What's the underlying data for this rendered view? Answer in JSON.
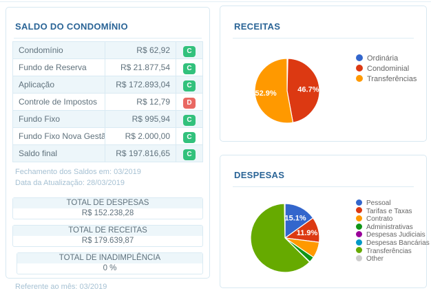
{
  "colors": {
    "title_accent": "#2a6496",
    "panel_border": "#d7e8f1",
    "row_alt_bg": "#edf6fa",
    "credit_badge": "#32c17c",
    "debit_badge": "#e96862",
    "muted_note": "#a6c1d3"
  },
  "saldo_panel": {
    "title": "SALDO DO CONDOMÍNIO",
    "rows": [
      {
        "label": "Condomínio",
        "value": "R$ 62,92",
        "badge": "C",
        "badge_type": "credit"
      },
      {
        "label": "Fundo de Reserva",
        "value": "R$ 21.877,54",
        "badge": "C",
        "badge_type": "credit"
      },
      {
        "label": "Aplicação",
        "value": "R$ 172.893,04",
        "badge": "C",
        "badge_type": "credit"
      },
      {
        "label": "Controle de Impostos",
        "value": "R$ 12,79",
        "badge": "D",
        "badge_type": "debit"
      },
      {
        "label": "Fundo Fixo",
        "value": "R$ 995,94",
        "badge": "C",
        "badge_type": "credit"
      },
      {
        "label": "Fundo Fixo Nova Gestão",
        "value": "R$ 2.000,00",
        "badge": "C",
        "badge_type": "credit"
      },
      {
        "label": "Saldo final",
        "value": "R$ 197.816,65",
        "badge": "C",
        "badge_type": "credit"
      }
    ],
    "notes": {
      "fechamento": "Fechamento dos Saldos em: 03/2019",
      "atualizacao": "Data da Atualização: 28/03/2019"
    },
    "totals": [
      {
        "label": "TOTAL DE DESPESAS",
        "value": "R$ 152.238,28"
      },
      {
        "label": "TOTAL DE RECEITAS",
        "value": "R$ 179.639,87"
      },
      {
        "label": "TOTAL DE INADIMPLÊNCIA",
        "value": "0 %"
      }
    ],
    "footer_note": "Referente ao mês: 03/2019"
  },
  "chart_data": [
    {
      "type": "pie",
      "title": "RECEITAS",
      "legend_position": "right",
      "labels_inside": true,
      "slices": [
        {
          "label": "Ordinária",
          "value": 0.4,
          "color": "#3366cc"
        },
        {
          "label": "Condominial",
          "value": 46.7,
          "color": "#dc3912",
          "pct_label": "46.7%"
        },
        {
          "label": "Transferências",
          "value": 52.9,
          "color": "#ff9900",
          "pct_label": "52.9%"
        }
      ]
    },
    {
      "type": "pie",
      "title": "DESPESAS",
      "legend_position": "right",
      "labels_inside": true,
      "slices": [
        {
          "label": "Pessoal",
          "value": 15.1,
          "color": "#3366cc",
          "pct_label": "15.1%"
        },
        {
          "label": "Tarifas e Taxas",
          "value": 11.9,
          "color": "#dc3912",
          "pct_label": "11.9%"
        },
        {
          "label": "Contrato",
          "value": 7.5,
          "color": "#ff9900"
        },
        {
          "label": "Administrativas",
          "value": 2.7,
          "color": "#109618"
        },
        {
          "label": "Despesas Judiciais",
          "value": 0.1,
          "color": "#990099"
        },
        {
          "label": "Despesas Bancárias",
          "value": 0.1,
          "color": "#0099c6"
        },
        {
          "label": "Transferências",
          "value": 62.3,
          "color": "#66aa00"
        },
        {
          "label": "Other",
          "value": 0.3,
          "color": "#cccccc"
        }
      ]
    }
  ]
}
